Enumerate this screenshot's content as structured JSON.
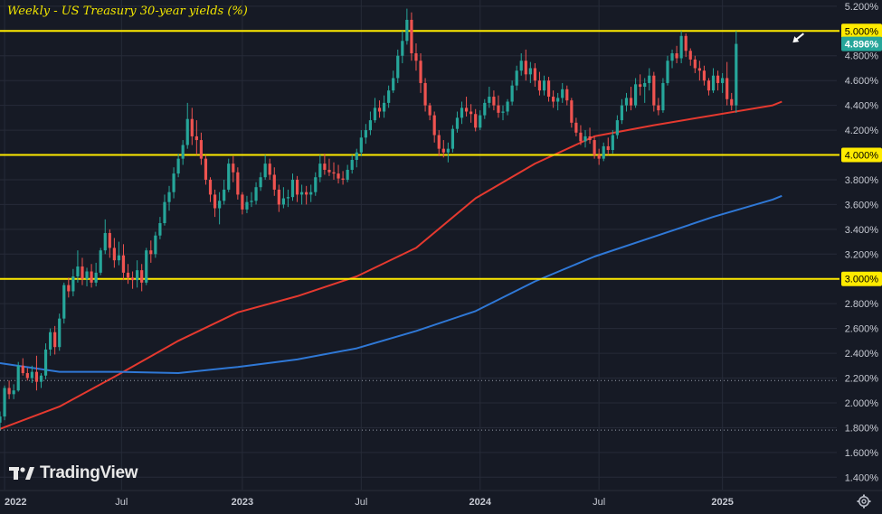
{
  "title": "Weekly - US Treasury 30-year yields (%)",
  "brand": "TradingView",
  "colors": {
    "background": "#161a25",
    "grid": "#262b38",
    "up": "#26a69a",
    "down": "#ef5350",
    "ma_short": "#e5392f",
    "ma_long": "#2f78d6",
    "level_line": "#ffeb00",
    "axis_text": "#c7cad3",
    "title": "#f2e600"
  },
  "icons": {
    "settings": "gear-icon",
    "annotation": "arrow-icon"
  },
  "chart_data": {
    "type": "candlestick",
    "title": "Weekly - US Treasury 30-year yields (%)",
    "ylim": [
      1.3,
      5.25
    ],
    "xlim": [
      "2021-12-27",
      "2025-06-30"
    ],
    "y_ticks": [
      "5.200%",
      "5.000%",
      "4.800%",
      "4.600%",
      "4.400%",
      "4.200%",
      "4.000%",
      "3.800%",
      "3.600%",
      "3.400%",
      "3.200%",
      "3.000%",
      "2.800%",
      "2.600%",
      "2.400%",
      "2.200%",
      "2.000%",
      "1.800%",
      "1.600%",
      "1.400%"
    ],
    "y_tick_values": [
      5.2,
      5.0,
      4.8,
      4.6,
      4.4,
      4.2,
      4.0,
      3.8,
      3.6,
      3.4,
      3.2,
      3.0,
      2.8,
      2.6,
      2.4,
      2.2,
      2.0,
      1.8,
      1.6,
      1.4
    ],
    "x_ticks": [
      {
        "label": "2022",
        "date": "2022-01-03"
      },
      {
        "label": "Jul",
        "date": "2022-07-01"
      },
      {
        "label": "2023",
        "date": "2023-01-02"
      },
      {
        "label": "Jul",
        "date": "2023-07-03"
      },
      {
        "label": "2024",
        "date": "2024-01-01"
      },
      {
        "label": "Jul",
        "date": "2024-07-01"
      },
      {
        "label": "2025",
        "date": "2025-01-06"
      }
    ],
    "horizontal_levels": [
      {
        "value": 5.0,
        "label": "5.000%",
        "style": "solid"
      },
      {
        "value": 4.0,
        "label": "4.000%",
        "style": "solid"
      },
      {
        "value": 3.0,
        "label": "3.000%",
        "style": "solid"
      },
      {
        "value": 2.18,
        "style": "dotted"
      },
      {
        "value": 1.78,
        "style": "dotted"
      }
    ],
    "last_price": {
      "value": 4.896,
      "label": "4.896%"
    },
    "annotation": {
      "type": "arrow",
      "points_to": 4.95,
      "date": "2025-04-07"
    },
    "grid": true,
    "candles_start": "2021-12-27",
    "candles_interval_days": 7,
    "candles_ohlc": [
      [
        1.84,
        1.93,
        1.78,
        1.89
      ],
      [
        1.89,
        2.14,
        1.86,
        2.12
      ],
      [
        2.12,
        2.18,
        2.03,
        2.07
      ],
      [
        2.07,
        2.15,
        2.03,
        2.1
      ],
      [
        2.1,
        2.33,
        2.09,
        2.3
      ],
      [
        2.3,
        2.36,
        2.22,
        2.24
      ],
      [
        2.24,
        2.28,
        2.18,
        2.2
      ],
      [
        2.2,
        2.3,
        2.16,
        2.25
      ],
      [
        2.25,
        2.38,
        2.1,
        2.17
      ],
      [
        2.17,
        2.24,
        2.12,
        2.22
      ],
      [
        2.22,
        2.48,
        2.19,
        2.43
      ],
      [
        2.43,
        2.6,
        2.38,
        2.57
      ],
      [
        2.57,
        2.62,
        2.39,
        2.45
      ],
      [
        2.45,
        2.72,
        2.42,
        2.68
      ],
      [
        2.68,
        2.97,
        2.64,
        2.95
      ],
      [
        2.95,
        3.01,
        2.85,
        2.9
      ],
      [
        2.9,
        3.08,
        2.86,
        3.02
      ],
      [
        3.02,
        3.23,
        2.97,
        3.1
      ],
      [
        3.1,
        3.17,
        2.95,
        3.0
      ],
      [
        3.0,
        3.09,
        2.94,
        3.06
      ],
      [
        3.06,
        3.12,
        2.93,
        2.97
      ],
      [
        2.97,
        3.13,
        2.94,
        3.05
      ],
      [
        3.05,
        3.25,
        3.03,
        3.23
      ],
      [
        3.23,
        3.48,
        3.2,
        3.37
      ],
      [
        3.37,
        3.4,
        3.17,
        3.25
      ],
      [
        3.25,
        3.33,
        3.09,
        3.15
      ],
      [
        3.15,
        3.3,
        3.11,
        3.19
      ],
      [
        3.19,
        3.28,
        2.99,
        3.05
      ],
      [
        3.05,
        3.12,
        2.96,
        3.01
      ],
      [
        3.01,
        3.06,
        2.92,
        2.99
      ],
      [
        2.99,
        3.15,
        2.93,
        3.07
      ],
      [
        3.07,
        3.12,
        2.9,
        2.97
      ],
      [
        2.97,
        3.25,
        2.95,
        3.23
      ],
      [
        3.23,
        3.31,
        3.13,
        3.2
      ],
      [
        3.2,
        3.38,
        3.17,
        3.35
      ],
      [
        3.35,
        3.5,
        3.32,
        3.45
      ],
      [
        3.45,
        3.68,
        3.43,
        3.62
      ],
      [
        3.62,
        3.75,
        3.55,
        3.7
      ],
      [
        3.7,
        3.9,
        3.65,
        3.85
      ],
      [
        3.85,
        4.01,
        3.82,
        3.97
      ],
      [
        3.97,
        4.12,
        3.92,
        4.08
      ],
      [
        4.08,
        4.42,
        4.05,
        4.29
      ],
      [
        4.29,
        4.38,
        4.08,
        4.15
      ],
      [
        4.15,
        4.28,
        4.0,
        4.12
      ],
      [
        4.12,
        4.18,
        3.92,
        3.97
      ],
      [
        3.97,
        4.0,
        3.76,
        3.8
      ],
      [
        3.8,
        3.82,
        3.62,
        3.68
      ],
      [
        3.68,
        3.72,
        3.5,
        3.57
      ],
      [
        3.57,
        3.7,
        3.44,
        3.63
      ],
      [
        3.63,
        3.8,
        3.6,
        3.72
      ],
      [
        3.72,
        3.97,
        3.7,
        3.93
      ],
      [
        3.93,
        3.99,
        3.78,
        3.86
      ],
      [
        3.86,
        3.9,
        3.64,
        3.68
      ],
      [
        3.68,
        3.7,
        3.52,
        3.56
      ],
      [
        3.56,
        3.67,
        3.53,
        3.62
      ],
      [
        3.62,
        3.7,
        3.58,
        3.63
      ],
      [
        3.63,
        3.78,
        3.6,
        3.74
      ],
      [
        3.74,
        3.86,
        3.71,
        3.82
      ],
      [
        3.82,
        4.0,
        3.8,
        3.93
      ],
      [
        3.93,
        3.97,
        3.8,
        3.84
      ],
      [
        3.84,
        3.9,
        3.67,
        3.72
      ],
      [
        3.72,
        3.76,
        3.54,
        3.6
      ],
      [
        3.6,
        3.74,
        3.57,
        3.65
      ],
      [
        3.65,
        3.72,
        3.58,
        3.66
      ],
      [
        3.66,
        3.85,
        3.63,
        3.8
      ],
      [
        3.8,
        3.83,
        3.62,
        3.68
      ],
      [
        3.68,
        3.76,
        3.6,
        3.7
      ],
      [
        3.7,
        3.75,
        3.6,
        3.68
      ],
      [
        3.68,
        3.76,
        3.62,
        3.7
      ],
      [
        3.7,
        3.86,
        3.67,
        3.82
      ],
      [
        3.82,
        4.0,
        3.78,
        3.93
      ],
      [
        3.93,
        4.01,
        3.84,
        3.88
      ],
      [
        3.88,
        3.97,
        3.83,
        3.86
      ],
      [
        3.86,
        3.94,
        3.8,
        3.85
      ],
      [
        3.85,
        3.92,
        3.77,
        3.81
      ],
      [
        3.81,
        3.87,
        3.76,
        3.8
      ],
      [
        3.8,
        3.92,
        3.78,
        3.88
      ],
      [
        3.88,
        4.0,
        3.85,
        3.96
      ],
      [
        3.96,
        4.05,
        3.9,
        4.02
      ],
      [
        4.02,
        4.2,
        3.99,
        4.14
      ],
      [
        4.14,
        4.25,
        4.09,
        4.2
      ],
      [
        4.2,
        4.35,
        4.16,
        4.28
      ],
      [
        4.28,
        4.46,
        4.26,
        4.38
      ],
      [
        4.38,
        4.44,
        4.3,
        4.35
      ],
      [
        4.35,
        4.48,
        4.3,
        4.42
      ],
      [
        4.42,
        4.56,
        4.38,
        4.52
      ],
      [
        4.52,
        4.68,
        4.5,
        4.62
      ],
      [
        4.62,
        4.85,
        4.58,
        4.8
      ],
      [
        4.8,
        5.0,
        4.74,
        4.92
      ],
      [
        4.92,
        5.18,
        4.89,
        5.09
      ],
      [
        5.09,
        5.15,
        4.76,
        4.82
      ],
      [
        4.82,
        4.9,
        4.68,
        4.76
      ],
      [
        4.76,
        4.82,
        4.5,
        4.58
      ],
      [
        4.58,
        4.62,
        4.35,
        4.4
      ],
      [
        4.4,
        4.42,
        4.28,
        4.32
      ],
      [
        4.32,
        4.35,
        4.1,
        4.16
      ],
      [
        4.16,
        4.2,
        3.99,
        4.05
      ],
      [
        4.05,
        4.12,
        3.98,
        4.02
      ],
      [
        4.02,
        4.1,
        3.94,
        4.05
      ],
      [
        4.05,
        4.24,
        4.02,
        4.21
      ],
      [
        4.21,
        4.35,
        4.18,
        4.3
      ],
      [
        4.3,
        4.43,
        4.25,
        4.38
      ],
      [
        4.38,
        4.47,
        4.31,
        4.35
      ],
      [
        4.35,
        4.41,
        4.26,
        4.33
      ],
      [
        4.33,
        4.37,
        4.19,
        4.22
      ],
      [
        4.22,
        4.36,
        4.2,
        4.32
      ],
      [
        4.32,
        4.45,
        4.29,
        4.42
      ],
      [
        4.42,
        4.55,
        4.38,
        4.47
      ],
      [
        4.47,
        4.52,
        4.36,
        4.4
      ],
      [
        4.4,
        4.48,
        4.3,
        4.34
      ],
      [
        4.34,
        4.4,
        4.28,
        4.35
      ],
      [
        4.35,
        4.45,
        4.32,
        4.43
      ],
      [
        4.43,
        4.6,
        4.4,
        4.56
      ],
      [
        4.56,
        4.72,
        4.52,
        4.68
      ],
      [
        4.68,
        4.82,
        4.64,
        4.76
      ],
      [
        4.76,
        4.85,
        4.6,
        4.65
      ],
      [
        4.65,
        4.75,
        4.58,
        4.7
      ],
      [
        4.7,
        4.74,
        4.55,
        4.6
      ],
      [
        4.6,
        4.67,
        4.48,
        4.52
      ],
      [
        4.52,
        4.64,
        4.48,
        4.6
      ],
      [
        4.6,
        4.63,
        4.43,
        4.47
      ],
      [
        4.47,
        4.52,
        4.38,
        4.43
      ],
      [
        4.43,
        4.5,
        4.36,
        4.46
      ],
      [
        4.46,
        4.58,
        4.42,
        4.53
      ],
      [
        4.53,
        4.56,
        4.4,
        4.44
      ],
      [
        4.44,
        4.46,
        4.22,
        4.26
      ],
      [
        4.26,
        4.3,
        4.15,
        4.18
      ],
      [
        4.18,
        4.24,
        4.08,
        4.11
      ],
      [
        4.11,
        4.2,
        4.06,
        4.15
      ],
      [
        4.15,
        4.22,
        4.09,
        4.12
      ],
      [
        4.12,
        4.15,
        3.97,
        4.0
      ],
      [
        4.0,
        4.05,
        3.92,
        3.97
      ],
      [
        3.97,
        4.1,
        3.95,
        4.07
      ],
      [
        4.07,
        4.14,
        4.0,
        4.04
      ],
      [
        4.04,
        4.2,
        4.01,
        4.16
      ],
      [
        4.16,
        4.32,
        4.13,
        4.28
      ],
      [
        4.28,
        4.45,
        4.25,
        4.4
      ],
      [
        4.4,
        4.5,
        4.35,
        4.46
      ],
      [
        4.46,
        4.55,
        4.36,
        4.4
      ],
      [
        4.4,
        4.62,
        4.38,
        4.57
      ],
      [
        4.57,
        4.65,
        4.48,
        4.55
      ],
      [
        4.55,
        4.62,
        4.42,
        4.58
      ],
      [
        4.58,
        4.7,
        4.52,
        4.64
      ],
      [
        4.64,
        4.67,
        4.35,
        4.4
      ],
      [
        4.4,
        4.46,
        4.32,
        4.36
      ],
      [
        4.36,
        4.62,
        4.34,
        4.58
      ],
      [
        4.58,
        4.8,
        4.56,
        4.76
      ],
      [
        4.76,
        4.85,
        4.7,
        4.82
      ],
      [
        4.82,
        4.88,
        4.74,
        4.78
      ],
      [
        4.78,
        5.0,
        4.74,
        4.96
      ],
      [
        4.96,
        4.98,
        4.79,
        4.84
      ],
      [
        4.84,
        4.86,
        4.72,
        4.77
      ],
      [
        4.77,
        4.8,
        4.66,
        4.7
      ],
      [
        4.7,
        4.76,
        4.6,
        4.68
      ],
      [
        4.68,
        4.72,
        4.56,
        4.6
      ],
      [
        4.6,
        4.62,
        4.48,
        4.52
      ],
      [
        4.52,
        4.7,
        4.5,
        4.64
      ],
      [
        4.64,
        4.68,
        4.52,
        4.58
      ],
      [
        4.58,
        4.66,
        4.5,
        4.62
      ],
      [
        4.62,
        4.75,
        4.4,
        4.45
      ],
      [
        4.45,
        4.5,
        4.36,
        4.4
      ],
      [
        4.4,
        5.0,
        4.34,
        4.896
      ]
    ],
    "series": [
      {
        "name": "",
        "type": "line",
        "color": "#e5392f",
        "x": [
          "2021-12-27",
          "2022-03-28",
          "2022-06-27",
          "2022-09-26",
          "2022-12-26",
          "2023-03-27",
          "2023-06-26",
          "2023-09-25",
          "2023-12-25",
          "2024-03-25",
          "2024-06-24",
          "2024-09-23",
          "2024-12-23",
          "2025-03-24",
          "2025-04-07"
        ],
        "values": [
          1.79,
          1.97,
          2.23,
          2.5,
          2.73,
          2.86,
          3.02,
          3.25,
          3.65,
          3.93,
          4.15,
          4.24,
          4.32,
          4.4,
          4.43
        ]
      },
      {
        "name": "",
        "type": "line",
        "color": "#2f78d6",
        "x": [
          "2021-12-27",
          "2022-03-28",
          "2022-06-27",
          "2022-09-26",
          "2022-12-26",
          "2023-03-27",
          "2023-06-26",
          "2023-09-25",
          "2023-12-25",
          "2024-03-25",
          "2024-06-24",
          "2024-09-23",
          "2024-12-23",
          "2025-03-24",
          "2025-04-07"
        ],
        "values": [
          2.32,
          2.25,
          2.25,
          2.24,
          2.29,
          2.35,
          2.44,
          2.58,
          2.74,
          2.98,
          3.18,
          3.34,
          3.5,
          3.64,
          3.67
        ]
      }
    ]
  }
}
